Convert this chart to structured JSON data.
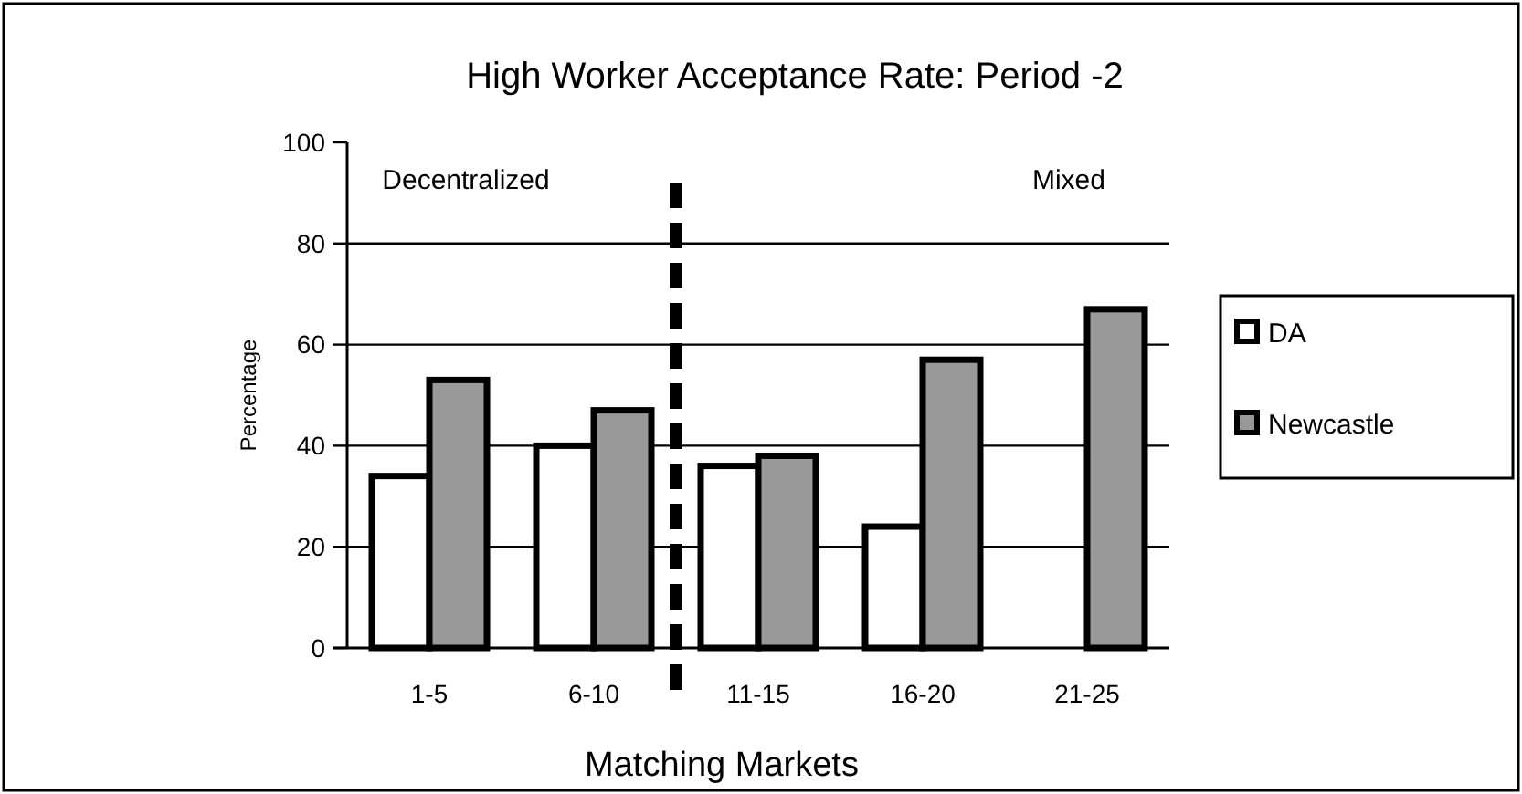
{
  "chart_data": {
    "type": "bar",
    "title": "High Worker Acceptance Rate:  Period -2",
    "xlabel": "Matching Markets",
    "ylabel": "Percentage",
    "categories": [
      "1-5",
      "6-10",
      "11-15",
      "16-20",
      "21-25"
    ],
    "series": [
      {
        "name": "DA",
        "color": "#ffffff",
        "values": [
          34,
          40,
          36,
          24,
          null
        ]
      },
      {
        "name": "Newcastle",
        "color": "#999999",
        "values": [
          53,
          47,
          38,
          57,
          67
        ]
      }
    ],
    "ylim": [
      0,
      100
    ],
    "yticks": [
      0,
      20,
      40,
      60,
      80,
      100
    ],
    "grid": "y",
    "legend": "right",
    "annotations": [
      "Decentralized",
      "Mixed"
    ]
  }
}
